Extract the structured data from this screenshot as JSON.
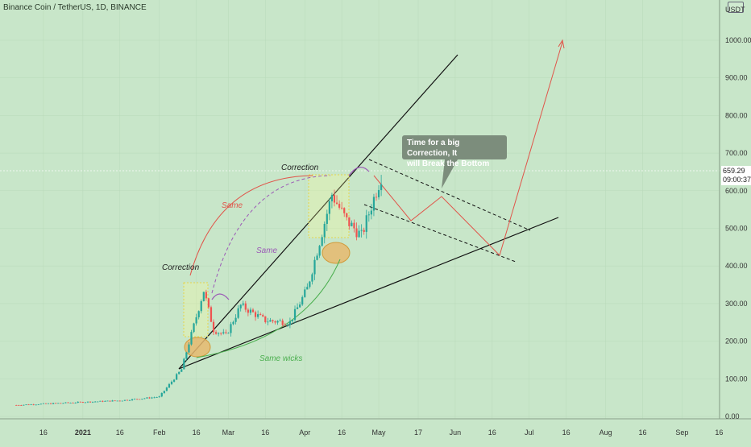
{
  "header": {
    "title": "Binance Coin / TetherUS, 1D, BINANCE"
  },
  "axis": {
    "unit": "USDT",
    "y_ticks": [
      "0.00",
      "100.00",
      "200.00",
      "300.00",
      "400.00",
      "500.00",
      "600.00",
      "700.00",
      "800.00",
      "900.00",
      "1000.00"
    ],
    "x_ticks": [
      "16",
      "2021",
      "16",
      "Feb",
      "16",
      "Mar",
      "16",
      "Apr",
      "16",
      "May",
      "17",
      "Jun",
      "16",
      "Jul",
      "16",
      "Aug",
      "16",
      "Sep",
      "16"
    ],
    "current_price": "659.29",
    "countdown": "09:00:37"
  },
  "annotations": {
    "correction_1": "Correction",
    "correction_2": "Correction",
    "same_red": "Same",
    "same_purple": "Same",
    "same_wicks": "Same wicks",
    "callout_line1": "Time for a big Correction, It",
    "callout_line2": "will Break the Bottom"
  },
  "colors": {
    "background": "#c8e6c9",
    "up_candle": "#26a69a",
    "down_candle": "#ef5350",
    "red_annotation": "#e0554a",
    "purple_annotation": "#9b59b6",
    "green_annotation": "#4caf50",
    "ellipse": "#e6b86f"
  },
  "chart_data": {
    "type": "candlestick",
    "title": "Binance Coin / TetherUS, 1D, BINANCE",
    "ylim": [
      0,
      1050
    ],
    "ylabel": "USDT",
    "last_price": 659.29,
    "ohlc_anchor_points": [
      {
        "date": "2020-12-05",
        "close": 30
      },
      {
        "date": "2021-01-01",
        "close": 38
      },
      {
        "date": "2021-01-16",
        "close": 42
      },
      {
        "date": "2021-02-01",
        "close": 52
      },
      {
        "date": "2021-02-10",
        "close": 125
      },
      {
        "date": "2021-02-19",
        "close": 335
      },
      {
        "date": "2021-02-23",
        "close": 230
      },
      {
        "date": "2021-02-28",
        "close": 215
      },
      {
        "date": "2021-03-06",
        "close": 295
      },
      {
        "date": "2021-03-16",
        "close": 255
      },
      {
        "date": "2021-03-26",
        "close": 250
      },
      {
        "date": "2021-04-02",
        "close": 340
      },
      {
        "date": "2021-04-12",
        "close": 590
      },
      {
        "date": "2021-04-18",
        "close": 520
      },
      {
        "date": "2021-04-24",
        "close": 480
      },
      {
        "date": "2021-04-28",
        "close": 560
      },
      {
        "date": "2021-05-03",
        "close": 659.29
      }
    ],
    "projection_path": [
      {
        "date": "2021-05-05",
        "price": 620
      },
      {
        "date": "2021-05-23",
        "price": 520
      },
      {
        "date": "2021-06-03",
        "price": 595
      },
      {
        "date": "2021-06-26",
        "price": 430
      },
      {
        "date": "2021-07-21",
        "price": 1010
      }
    ]
  }
}
